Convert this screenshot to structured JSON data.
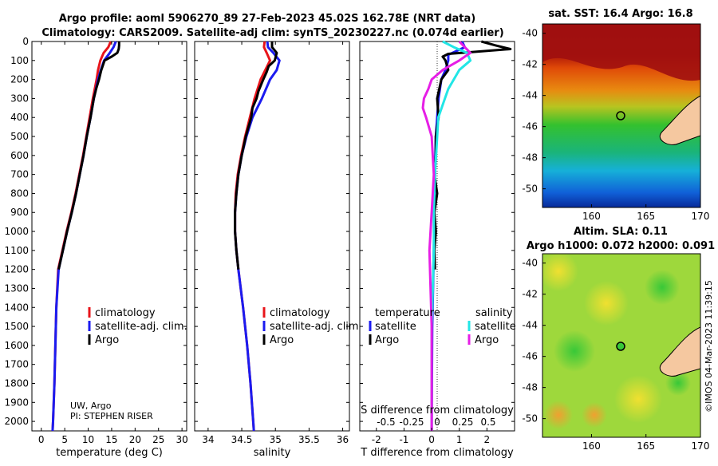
{
  "figure": {
    "title_line1": "Argo profile: aoml 5906270_89 27-Feb-2023 45.02S 162.78E (NRT data)",
    "title_line2": "Climatology: CARS2009. Satellite-adj clim: synTS_20230227.nc (0.074d earlier)",
    "credit_line1": "UW, Argo",
    "credit_line2": "PI: STEPHEN RISER",
    "imos_stamp": "©IMOS 04-Mar-2023 11:39:15"
  },
  "colors": {
    "climatology": "#e8141a",
    "satellite": "#1b1bf0",
    "argo": "#000000",
    "salinity_sat": "#22e6e6",
    "salinity_argo": "#e61ee6",
    "land": "#f5c8a0"
  },
  "chart_data": [
    {
      "type": "line",
      "id": "temperature",
      "xlabel": "temperature (deg C)",
      "ylabel": "",
      "xlim": [
        -2,
        31
      ],
      "ylim": [
        0,
        2050
      ],
      "xticks": [
        0,
        5,
        10,
        15,
        20,
        25,
        30
      ],
      "yticks": [
        0,
        100,
        200,
        300,
        400,
        500,
        600,
        700,
        800,
        900,
        1000,
        1100,
        1200,
        1300,
        1400,
        1500,
        1600,
        1700,
        1800,
        1900,
        2000
      ],
      "legend": [
        "climatology",
        "satellite-adj. clim.",
        "Argo"
      ],
      "series": [
        {
          "name": "climatology",
          "depth": [
            0,
            30,
            60,
            100,
            150,
            200,
            300,
            400,
            500,
            600,
            700,
            800,
            900,
            1000,
            1100,
            1200,
            1400,
            1600,
            1800,
            2000,
            2050
          ],
          "values": [
            14.8,
            14.3,
            13.3,
            12.6,
            12.1,
            11.8,
            11.0,
            10.3,
            9.6,
            8.9,
            8.1,
            7.3,
            6.4,
            5.4,
            4.5,
            3.6,
            3.2,
            3.0,
            2.8,
            2.5,
            2.4
          ]
        },
        {
          "name": "satellite-adj. clim.",
          "depth": [
            0,
            30,
            60,
            100,
            150,
            200,
            300,
            400,
            500,
            600,
            700,
            800,
            900,
            1000,
            1100,
            1200,
            1400,
            1600,
            1800,
            2000,
            2050
          ],
          "values": [
            15.9,
            15.4,
            14.6,
            13.4,
            12.7,
            12.1,
            11.2,
            10.5,
            9.7,
            9.0,
            8.2,
            7.4,
            6.5,
            5.5,
            4.6,
            3.7,
            3.2,
            3.0,
            2.8,
            2.5,
            2.4
          ]
        },
        {
          "name": "Argo",
          "depth": [
            0,
            20,
            40,
            60,
            80,
            100,
            150,
            200,
            250,
            300,
            400,
            500,
            600,
            700,
            800,
            900,
            1000,
            1100,
            1200
          ],
          "values": [
            16.6,
            16.6,
            16.5,
            16.2,
            15.0,
            13.5,
            12.8,
            12.3,
            11.7,
            11.2,
            10.5,
            9.7,
            9.0,
            8.2,
            7.4,
            6.5,
            5.5,
            4.6,
            3.7
          ]
        }
      ]
    },
    {
      "type": "line",
      "id": "salinity",
      "xlabel": "salinity",
      "ylabel": "",
      "xlim": [
        33.8,
        36.1
      ],
      "ylim": [
        0,
        2050
      ],
      "xticks": [
        34,
        34.5,
        35,
        35.5,
        36
      ],
      "legend": [
        "climatology",
        "satellite-adj. clim.",
        "Argo"
      ],
      "series": [
        {
          "name": "climatology",
          "depth": [
            0,
            30,
            60,
            100,
            150,
            200,
            300,
            400,
            500,
            600,
            700,
            800,
            900,
            1000,
            1100,
            1200,
            1400,
            1600,
            1800,
            2000,
            2050
          ],
          "values": [
            34.84,
            34.83,
            34.87,
            34.92,
            34.85,
            34.78,
            34.69,
            34.62,
            34.55,
            34.49,
            34.44,
            34.41,
            34.4,
            34.4,
            34.42,
            34.45,
            34.52,
            34.58,
            34.63,
            34.67,
            34.68
          ]
        },
        {
          "name": "satellite-adj. clim.",
          "depth": [
            0,
            30,
            60,
            100,
            150,
            200,
            300,
            400,
            500,
            600,
            700,
            800,
            900,
            1000,
            1100,
            1200,
            1400,
            1600,
            1800,
            2000,
            2050
          ],
          "values": [
            34.88,
            34.89,
            34.97,
            35.06,
            35.02,
            34.92,
            34.8,
            34.66,
            34.57,
            34.5,
            34.45,
            34.42,
            34.4,
            34.4,
            34.42,
            34.45,
            34.52,
            34.58,
            34.63,
            34.67,
            34.68
          ]
        },
        {
          "name": "Argo",
          "depth": [
            0,
            30,
            60,
            100,
            130,
            160,
            200,
            260,
            300,
            350,
            400,
            500,
            600,
            700,
            800,
            900,
            1000,
            1100,
            1200
          ],
          "values": [
            34.95,
            34.95,
            35.02,
            34.99,
            34.9,
            34.87,
            34.82,
            34.75,
            34.72,
            34.66,
            34.64,
            34.56,
            34.5,
            34.45,
            34.42,
            34.4,
            34.4,
            34.42,
            34.45
          ]
        }
      ]
    },
    {
      "type": "line",
      "id": "difference",
      "xlabel": "T difference from climatology",
      "xlabel_top": "S difference from climatology",
      "ylabel": "",
      "xlim": [
        -2.6,
        3.0
      ],
      "ylim": [
        0,
        2050
      ],
      "xticks": [
        -2,
        -1,
        0,
        1,
        2
      ],
      "s_ticks": [
        "-0.5",
        "-0.25",
        "0",
        "0.25",
        "0.5"
      ],
      "legend_titles": [
        "temperature",
        "salinity"
      ],
      "legend": [
        "satellite",
        "Argo",
        "satellite",
        "Argo"
      ],
      "series": [
        {
          "name": "temperature satellite",
          "depth": [
            0,
            30,
            50,
            70,
            100,
            150,
            200,
            300,
            400,
            500,
            700,
            900,
            1100,
            1300,
            1500,
            1800,
            2050
          ],
          "values": [
            1.1,
            1.2,
            0.9,
            0.6,
            0.6,
            0.5,
            0.35,
            0.25,
            0.2,
            0.15,
            0.12,
            0.1,
            0.08,
            0.05,
            0.02,
            0.01,
            0.0
          ]
        },
        {
          "name": "temperature Argo",
          "depth": [
            0,
            20,
            40,
            55,
            65,
            80,
            100,
            150,
            200,
            300,
            400,
            500,
            600,
            700,
            800,
            900,
            1000,
            1100,
            1200
          ],
          "values": [
            1.8,
            2.3,
            2.85,
            1.5,
            0.6,
            0.4,
            0.5,
            0.6,
            0.35,
            0.2,
            0.25,
            0.15,
            0.15,
            0.1,
            0.2,
            0.1,
            0.15,
            0.1,
            0.12
          ]
        },
        {
          "name": "salinity satellite",
          "depth": [
            0,
            30,
            60,
            100,
            150,
            200,
            250,
            300,
            400,
            500,
            700,
            900,
            1100,
            1300,
            1500,
            2050
          ],
          "values": [
            0.1,
            0.2,
            0.32,
            0.35,
            0.25,
            0.2,
            0.15,
            0.12,
            0.06,
            0.05,
            0.03,
            0.02,
            0.02,
            0.01,
            0.0,
            0.0
          ]
        },
        {
          "name": "salinity Argo",
          "depth": [
            0,
            30,
            60,
            100,
            150,
            200,
            250,
            300,
            350,
            400,
            500,
            700,
            900,
            1100,
            1300,
            1500,
            2050
          ],
          "values": [
            0.25,
            0.3,
            0.35,
            0.25,
            0.1,
            0.0,
            -0.03,
            -0.07,
            -0.08,
            -0.05,
            0.0,
            0.02,
            0.0,
            -0.02,
            -0.01,
            0.0,
            0.0
          ]
        }
      ]
    },
    {
      "type": "heatmap",
      "id": "sst_map",
      "title": "sat. SST: 16.4 Argo: 16.8",
      "xlim": [
        155.5,
        170
      ],
      "ylim": [
        -51.2,
        -39.4
      ],
      "xticks": [
        160,
        165,
        170
      ],
      "yticks": [
        -40,
        -42,
        -44,
        -46,
        -48,
        -50
      ],
      "argo_position": [
        162.78,
        -45.02
      ]
    },
    {
      "type": "heatmap",
      "id": "sla_map",
      "title_line1": "Altim. SLA: 0.11",
      "title_line2": "Argo h1000: 0.072 h2000: 0.091",
      "xlim": [
        155.5,
        170
      ],
      "ylim": [
        -51.2,
        -39.4
      ],
      "xticks": [
        160,
        165,
        170
      ],
      "yticks": [
        -40,
        -42,
        -44,
        -46,
        -48,
        -50
      ],
      "argo_position": [
        162.78,
        -45.02
      ]
    }
  ]
}
